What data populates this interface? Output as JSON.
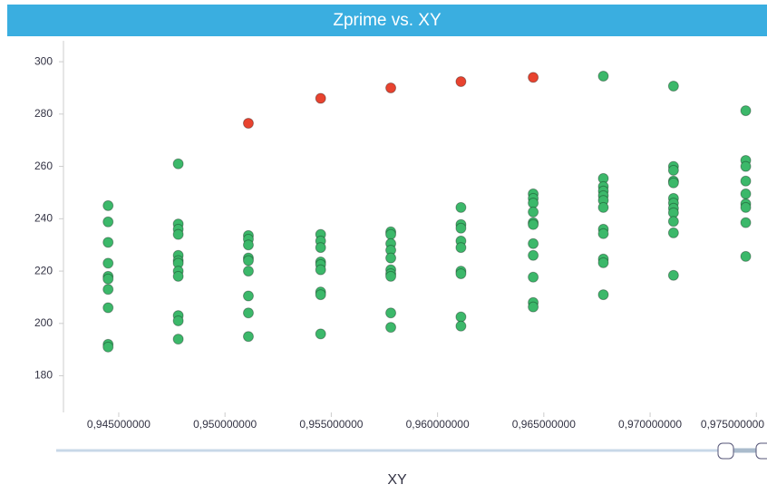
{
  "chart_data": {
    "type": "scatter",
    "title": "Zprime vs. XY",
    "x_label": "XY",
    "series": [
      {
        "color": "#3cb86a",
        "x": [
          0.9445,
          0.9445,
          0.9445,
          0.9445,
          0.9445,
          0.9445,
          0.9445,
          0.9445,
          0.9445,
          0.9445,
          0.9478,
          0.9478,
          0.9478,
          0.9478,
          0.9478,
          0.9478,
          0.9478,
          0.9478,
          0.9478,
          0.9478,
          0.9478,
          0.9478,
          0.9511,
          0.9511,
          0.9511,
          0.9511,
          0.9511,
          0.9511,
          0.9511,
          0.9511,
          0.9511,
          0.9545,
          0.9545,
          0.9545,
          0.9545,
          0.9545,
          0.9545,
          0.9545,
          0.9545,
          0.9545,
          0.9578,
          0.9578,
          0.9578,
          0.9578,
          0.9578,
          0.9578,
          0.9578,
          0.9578,
          0.9578,
          0.9578,
          0.9611,
          0.9611,
          0.9611,
          0.9611,
          0.9611,
          0.9611,
          0.9611,
          0.9611,
          0.9611,
          0.9645,
          0.9645,
          0.9645,
          0.9645,
          0.9645,
          0.9645,
          0.9645,
          0.9645,
          0.9645,
          0.9645,
          0.9645,
          0.9678,
          0.9678,
          0.9678,
          0.9678,
          0.9678,
          0.9678,
          0.9678,
          0.9678,
          0.9678,
          0.9678,
          0.9678,
          0.9678,
          0.9711,
          0.9711,
          0.9711,
          0.9711,
          0.9711,
          0.9711,
          0.9711,
          0.9711,
          0.9711,
          0.9711,
          0.9711,
          0.9711,
          0.9745,
          0.9745,
          0.9745,
          0.9745,
          0.9745,
          0.9745,
          0.9745,
          0.9745,
          0.9745
        ],
        "values": [
          245,
          238.8,
          231,
          223,
          218,
          217,
          213,
          206,
          192,
          191,
          261,
          238,
          236,
          234,
          226,
          224,
          223,
          220,
          218,
          203,
          201,
          194,
          233.6,
          232.2,
          230,
          225,
          224,
          220,
          210.5,
          204,
          195,
          234,
          231.5,
          229,
          223.5,
          222.5,
          220.5,
          212,
          211,
          196,
          235,
          234,
          230.5,
          228,
          225,
          220.5,
          219,
          218,
          204,
          198.5,
          244.3,
          237.8,
          236.4,
          231.5,
          229,
          220,
          219,
          202.5,
          199,
          249.5,
          247.8,
          246,
          242.6,
          238.5,
          237.8,
          230.5,
          226,
          217.7,
          208,
          206.3,
          294.5,
          255.4,
          252.3,
          250.6,
          248.8,
          247,
          244.3,
          236,
          234.3,
          224.6,
          223.2,
          211,
          290.7,
          260,
          258.5,
          254.4,
          253.7,
          247.8,
          246,
          244,
          242.3,
          239,
          234.6,
          218.4,
          281.3,
          262.3,
          260,
          254.4,
          249.5,
          245.7,
          244.3,
          238.5,
          225.6
        ]
      },
      {
        "color": "#e8432f",
        "x": [
          0.9511,
          0.9545,
          0.9578,
          0.9611,
          0.9645
        ],
        "values": [
          276.5,
          286,
          290,
          292.4,
          294
        ]
      }
    ],
    "xlim": [
      0.9424,
      0.9755
    ],
    "xticks": [
      {
        "value": 0.945,
        "label": "0,945000000"
      },
      {
        "value": 0.95,
        "label": "0,950000000"
      },
      {
        "value": 0.955,
        "label": "0,955000000"
      },
      {
        "value": 0.96,
        "label": "0,960000000"
      },
      {
        "value": 0.965,
        "label": "0,965000000"
      },
      {
        "value": 0.97,
        "label": "0,970000000"
      },
      {
        "value": 0.975,
        "label": "0,975000000"
      }
    ],
    "ylim": [
      166,
      308
    ],
    "yticks": [
      180,
      200,
      220,
      240,
      260,
      280,
      300
    ],
    "grid": false
  }
}
